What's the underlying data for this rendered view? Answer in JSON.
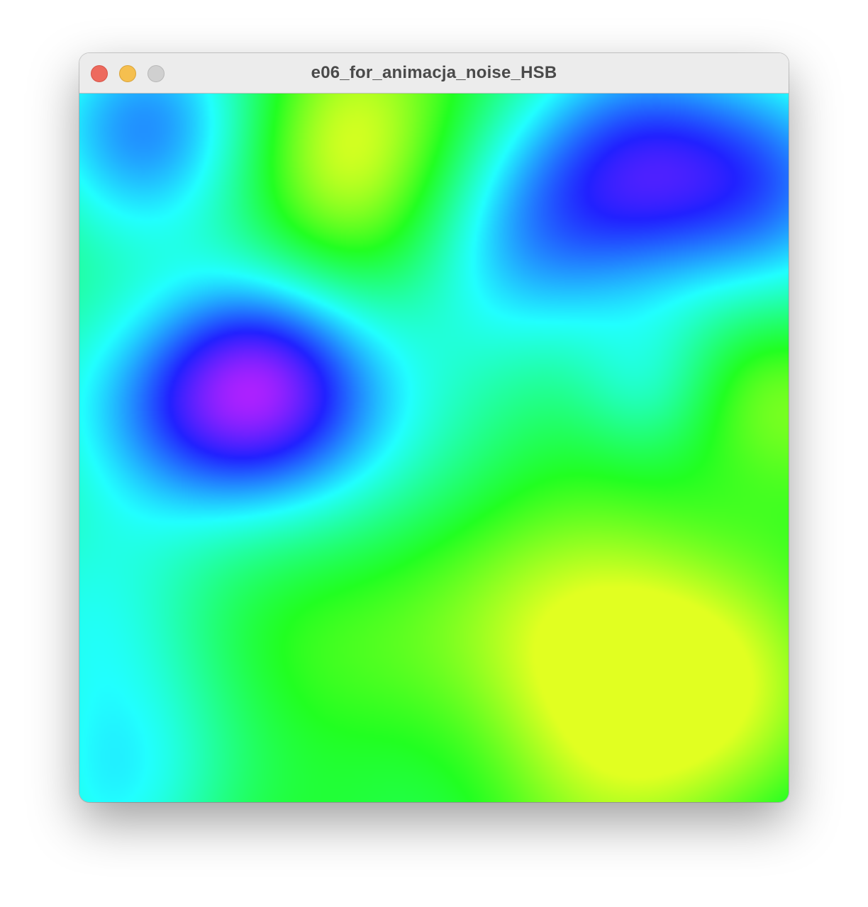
{
  "window": {
    "title": "e06_for_animacja_noise_HSB"
  },
  "traffic_lights": {
    "close_color": "#ed6a5e",
    "close_border": "#d65448",
    "minimize_color": "#f5bf4f",
    "minimize_border": "#d9a43a",
    "zoom_color": "#d0d0d0",
    "zoom_border": "#b8b8b8"
  },
  "sketch": {
    "description_colors": [
      "#1e2cff",
      "#7a22ff",
      "#22f3ff",
      "#22c0ff",
      "#22ff40",
      "#cfff22",
      "#8aff2a",
      "#22ffa8"
    ]
  }
}
